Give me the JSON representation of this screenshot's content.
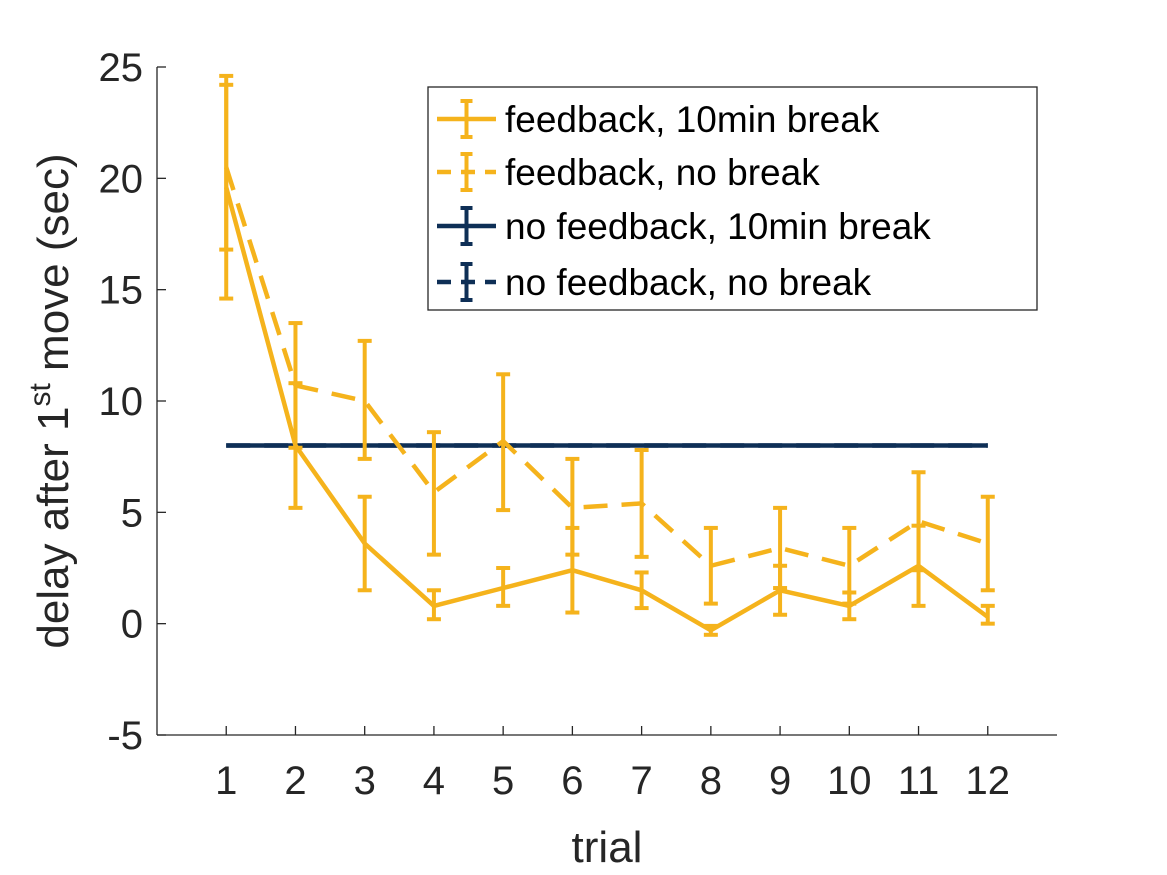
{
  "chart_data": {
    "type": "line",
    "xlabel": "trial",
    "ylabel_parts": [
      "delay after 1",
      "st",
      " move (sec)"
    ],
    "x": [
      1,
      2,
      3,
      4,
      5,
      6,
      7,
      8,
      9,
      10,
      11,
      12
    ],
    "xlim": [
      0,
      13
    ],
    "ylim": [
      -5,
      25
    ],
    "yticks": [
      -5,
      0,
      5,
      10,
      15,
      20,
      25
    ],
    "grid": false,
    "legend_position": "top-right",
    "series": [
      {
        "name": "feedback, 10min break",
        "color": "#F5B31C",
        "linestyle": "solid",
        "values": [
          19.6,
          8.0,
          3.6,
          0.8,
          1.6,
          2.4,
          1.5,
          -0.3,
          1.5,
          0.8,
          2.6,
          0.3
        ],
        "err_low": [
          14.6,
          5.2,
          1.5,
          0.2,
          0.8,
          0.5,
          0.7,
          -0.5,
          0.4,
          0.2,
          0.8,
          0.0
        ],
        "err_high": [
          24.6,
          10.8,
          5.7,
          1.5,
          2.5,
          4.3,
          2.3,
          -0.1,
          2.6,
          1.4,
          4.4,
          0.8
        ]
      },
      {
        "name": "feedback, no break",
        "color": "#F5B31C",
        "linestyle": "dashed",
        "values": [
          20.5,
          10.7,
          10.0,
          5.9,
          8.2,
          5.2,
          5.4,
          2.6,
          3.4,
          2.6,
          4.6,
          3.6
        ],
        "err_low": [
          16.8,
          7.9,
          7.4,
          3.1,
          5.1,
          3.1,
          3.0,
          0.9,
          1.6,
          0.9,
          2.4,
          1.5
        ],
        "err_high": [
          24.2,
          13.5,
          12.7,
          8.6,
          11.2,
          7.4,
          7.8,
          4.3,
          5.2,
          4.3,
          6.8,
          5.7
        ]
      },
      {
        "name": "no feedback, 10min break",
        "color": "#0E2F56",
        "linestyle": "solid",
        "values": [
          8,
          8,
          8,
          8,
          8,
          8,
          8,
          8,
          8,
          8,
          8,
          8
        ],
        "err_low": [
          8,
          8,
          8,
          8,
          8,
          8,
          8,
          8,
          8,
          8,
          8,
          8
        ],
        "err_high": [
          8,
          8,
          8,
          8,
          8,
          8,
          8,
          8,
          8,
          8,
          8,
          8
        ]
      },
      {
        "name": "no feedback, no break",
        "color": "#0E2F56",
        "linestyle": "dashed",
        "values": [
          8,
          8,
          8,
          8,
          8,
          8,
          8,
          8,
          8,
          8,
          8,
          8
        ],
        "err_low": [
          8,
          8,
          8,
          8,
          8,
          8,
          8,
          8,
          8,
          8,
          8,
          8
        ],
        "err_high": [
          8,
          8,
          8,
          8,
          8,
          8,
          8,
          8,
          8,
          8,
          8,
          8
        ]
      }
    ]
  }
}
